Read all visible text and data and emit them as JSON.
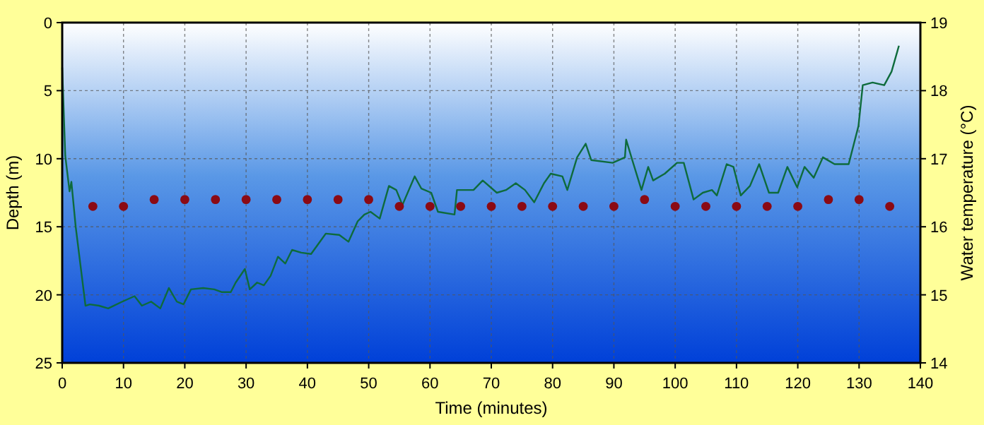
{
  "chart_data": {
    "type": "line",
    "xlabel": "Time (minutes)",
    "ylabel": "Depth (m)",
    "y2label": "Water temperature (°C)",
    "xlim": [
      0,
      140
    ],
    "xticks": [
      0,
      10,
      20,
      30,
      40,
      50,
      60,
      70,
      80,
      90,
      100,
      110,
      120,
      130,
      140
    ],
    "ylim": [
      25,
      0
    ],
    "yticks": [
      0,
      5,
      10,
      15,
      20,
      25
    ],
    "y2lim": [
      14,
      19
    ],
    "y2ticks": [
      14,
      15,
      16,
      17,
      18,
      19
    ],
    "grid": true,
    "series": [
      {
        "color": "#0e6b3c",
        "x": [
          0,
          0.5,
          1.2,
          1.5,
          2.2,
          3.8,
          4.5,
          6,
          7.5,
          9.8,
          11.8,
          13,
          14.5,
          16,
          17.4,
          18.7,
          19.8,
          21,
          23,
          24.8,
          26,
          27.5,
          28.3,
          29.8,
          30.6,
          31.8,
          32.9,
          34,
          35.2,
          36.4,
          37.5,
          39,
          40.6,
          42.2,
          43,
          45.2,
          46.7,
          48.2,
          49.3,
          50.3,
          51.8,
          53.3,
          54.5,
          55.5,
          57.5,
          58.6,
          60.2,
          61.3,
          64,
          64.4,
          67.1,
          68.6,
          70.9,
          72.4,
          74,
          75.5,
          77,
          78.6,
          79.7,
          81.6,
          82.4,
          84,
          85.4,
          86.3,
          89.8,
          91.8,
          92,
          93,
          94.5,
          95.6,
          96.4,
          98.3,
          100.3,
          101.4,
          103,
          104.5,
          106,
          106.8,
          108.4,
          109.5,
          110.7,
          112.2,
          113.7,
          115.3,
          116.8,
          118.3,
          119.9,
          121.1,
          122.6,
          124.1,
          126,
          128.3,
          129.9,
          130.6,
          132.2,
          134.1,
          135.3,
          136.5
        ],
        "values": [
          3.3,
          9.8,
          12.4,
          11.7,
          15,
          20.8,
          20.7,
          20.8,
          21,
          20.5,
          20.1,
          20.8,
          20.5,
          21,
          19.5,
          20.5,
          20.7,
          19.6,
          19.5,
          19.6,
          19.8,
          19.8,
          19.1,
          18.1,
          19.6,
          19.1,
          19.3,
          18.6,
          17.2,
          17.7,
          16.7,
          16.9,
          17,
          16,
          15.5,
          15.6,
          16.1,
          14.6,
          14.1,
          13.9,
          14.4,
          12,
          12.3,
          13.4,
          11.3,
          12.2,
          12.5,
          13.9,
          14.1,
          12.3,
          12.3,
          11.6,
          12.5,
          12.3,
          11.8,
          12.3,
          13.2,
          11.8,
          11.1,
          11.3,
          12.3,
          9.9,
          8.9,
          10.1,
          10.3,
          9.9,
          8.6,
          10.1,
          12.3,
          10.6,
          11.6,
          11.1,
          10.3,
          10.3,
          13,
          12.5,
          12.3,
          12.7,
          10.4,
          10.6,
          12.7,
          12,
          10.4,
          12.5,
          12.5,
          10.6,
          12.1,
          10.6,
          11.4,
          9.9,
          10.4,
          10.4,
          7.6,
          4.6,
          4.4,
          4.6,
          3.6,
          1.7
        ]
      },
      {
        "type": "scatter",
        "axis": "y2",
        "color": "#8b0a14",
        "marker": "circle",
        "x": [
          5,
          10,
          15,
          20,
          25,
          30,
          35,
          40,
          45,
          50,
          55,
          60,
          65,
          70,
          75,
          80,
          85,
          90,
          95,
          100,
          105,
          110,
          115,
          120,
          125,
          130,
          135
        ],
        "values": [
          16.3,
          16.3,
          16.4,
          16.4,
          16.4,
          16.4,
          16.4,
          16.4,
          16.4,
          16.4,
          16.3,
          16.3,
          16.3,
          16.3,
          16.3,
          16.3,
          16.3,
          16.3,
          16.4,
          16.3,
          16.3,
          16.3,
          16.3,
          16.3,
          16.4,
          16.4,
          16.3
        ]
      }
    ]
  }
}
